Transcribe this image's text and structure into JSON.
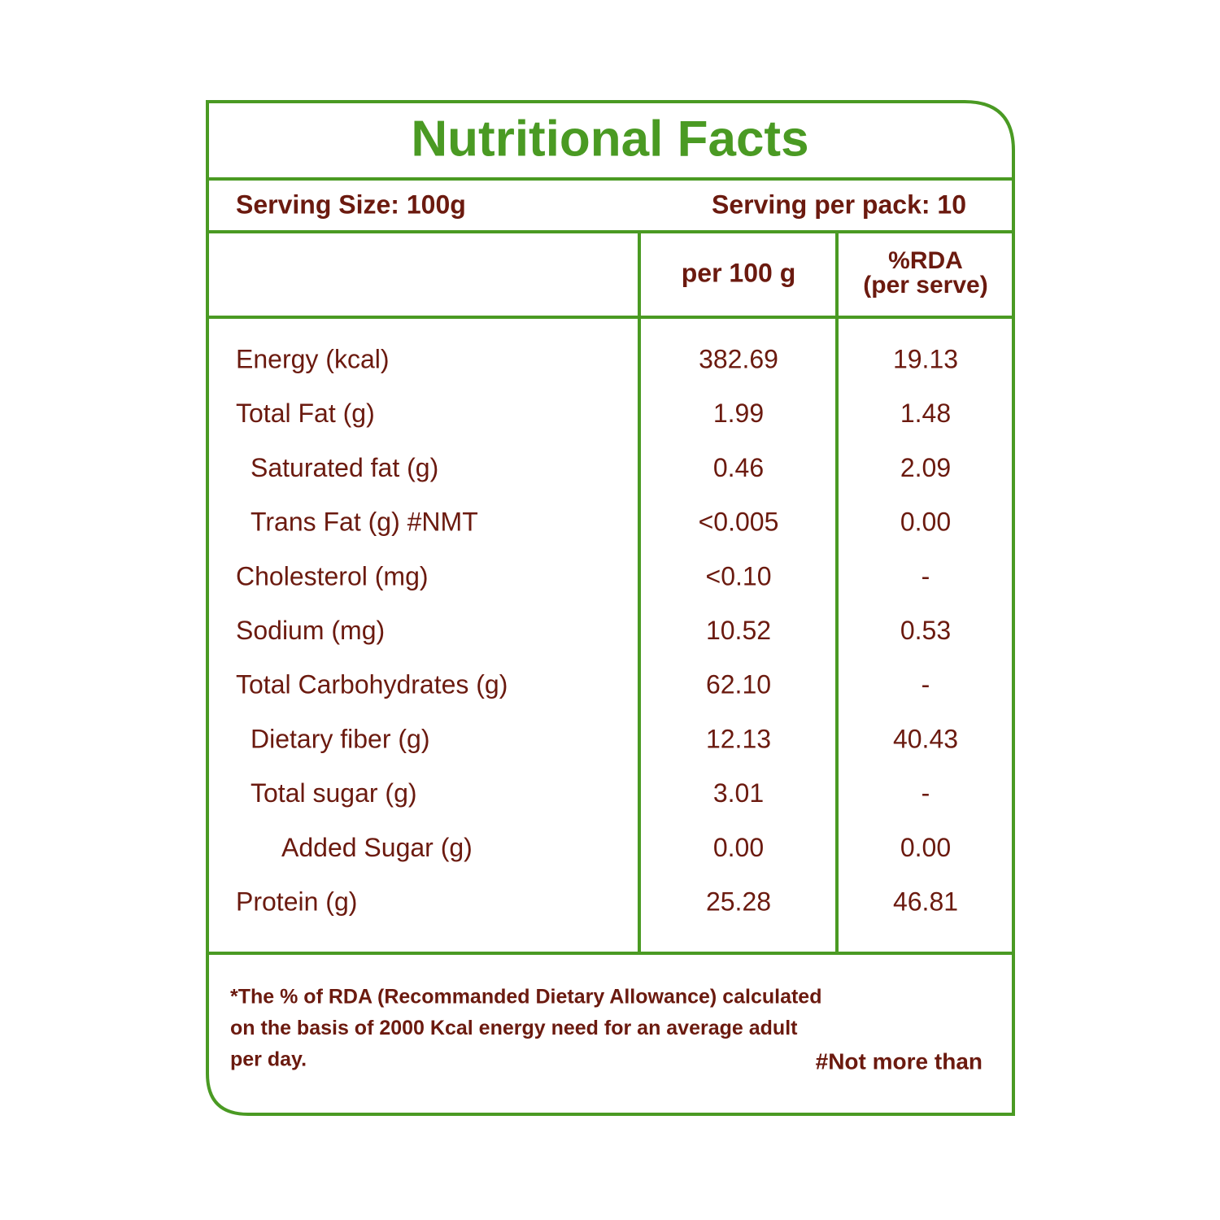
{
  "title": "Nutritional Facts",
  "serving_size": "Serving Size: 100g",
  "serving_per_pack": "Serving per pack: 10",
  "table": {
    "header": {
      "per_100g": "per 100 g",
      "rda_line1": "%RDA",
      "rda_line2": "(per serve)"
    },
    "rows": [
      [
        "Energy (kcal)",
        "382.69",
        "19.13"
      ],
      [
        "Total Fat (g)",
        "1.99",
        "1.48"
      ],
      [
        "Saturated fat (g)",
        "0.46",
        "2.09"
      ],
      [
        "Trans Fat (g) #NMT",
        "<0.005",
        "0.00"
      ],
      [
        "Cholesterol (mg)",
        "<0.10",
        "-"
      ],
      [
        "Sodium (mg)",
        "10.52",
        "0.53"
      ],
      [
        "Total Carbohydrates  (g)",
        "62.10",
        "-"
      ],
      [
        "Dietary fiber (g)",
        "12.13",
        "40.43"
      ],
      [
        "Total sugar (g)",
        "3.01",
        "-"
      ],
      [
        "Added Sugar (g)",
        "0.00",
        "0.00"
      ],
      [
        "Protein (g)",
        "25.28",
        "46.81"
      ]
    ]
  },
  "footnote": [
    "*The % of RDA (Recommanded Dietary Allowance) calculated",
    "on the basis of 2000 Kcal energy need for an average adult",
    "per day."
  ],
  "note": "#Not more than"
}
